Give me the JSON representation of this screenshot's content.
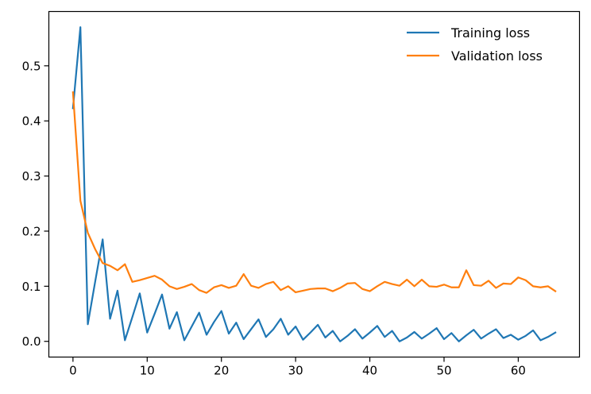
{
  "chart_data": {
    "type": "line",
    "title": "",
    "xlabel": "",
    "ylabel": "",
    "xlim": [
      -3.25,
      68.25
    ],
    "ylim": [
      -0.0285,
      0.5985
    ],
    "xticks": [
      0,
      10,
      20,
      30,
      40,
      50,
      60
    ],
    "yticks": [
      0.0,
      0.1,
      0.2,
      0.3,
      0.4,
      0.5
    ],
    "xtick_labels": [
      "0",
      "10",
      "20",
      "30",
      "40",
      "50",
      "60"
    ],
    "ytick_labels": [
      "0.0",
      "0.1",
      "0.2",
      "0.3",
      "0.4",
      "0.5"
    ],
    "grid": false,
    "legend_position": "top-right",
    "x": [
      0,
      1,
      2,
      3,
      4,
      5,
      6,
      7,
      8,
      9,
      10,
      11,
      12,
      13,
      14,
      15,
      16,
      17,
      18,
      19,
      20,
      21,
      22,
      23,
      24,
      25,
      26,
      27,
      28,
      29,
      30,
      31,
      32,
      33,
      34,
      35,
      36,
      37,
      38,
      39,
      40,
      41,
      42,
      43,
      44,
      45,
      46,
      47,
      48,
      49,
      50,
      51,
      52,
      53,
      54,
      55,
      56,
      57,
      58,
      59,
      60,
      61,
      62,
      63,
      64,
      65
    ],
    "series": [
      {
        "name": "Training loss",
        "color": "#1f77b4",
        "values": [
          0.423,
          0.57,
          0.031,
          0.109,
          0.185,
          0.041,
          0.092,
          0.002,
          0.044,
          0.087,
          0.016,
          0.05,
          0.085,
          0.023,
          0.053,
          0.002,
          0.027,
          0.052,
          0.012,
          0.035,
          0.055,
          0.014,
          0.034,
          0.004,
          0.022,
          0.04,
          0.008,
          0.022,
          0.041,
          0.012,
          0.027,
          0.003,
          0.016,
          0.03,
          0.007,
          0.019,
          0.0,
          0.01,
          0.022,
          0.005,
          0.016,
          0.028,
          0.008,
          0.019,
          0.0,
          0.007,
          0.017,
          0.005,
          0.014,
          0.024,
          0.004,
          0.015,
          0.0,
          0.011,
          0.021,
          0.005,
          0.014,
          0.022,
          0.006,
          0.012,
          0.003,
          0.01,
          0.02,
          0.002,
          0.008,
          0.016
        ]
      },
      {
        "name": "Validation loss",
        "color": "#ff7f0e",
        "values": [
          0.452,
          0.255,
          0.197,
          0.167,
          0.142,
          0.137,
          0.129,
          0.14,
          0.108,
          0.111,
          0.115,
          0.119,
          0.112,
          0.1,
          0.095,
          0.099,
          0.104,
          0.093,
          0.088,
          0.098,
          0.102,
          0.097,
          0.101,
          0.122,
          0.101,
          0.097,
          0.104,
          0.108,
          0.093,
          0.1,
          0.089,
          0.092,
          0.095,
          0.096,
          0.096,
          0.091,
          0.097,
          0.105,
          0.106,
          0.095,
          0.091,
          0.1,
          0.108,
          0.104,
          0.101,
          0.112,
          0.1,
          0.112,
          0.1,
          0.099,
          0.103,
          0.098,
          0.098,
          0.129,
          0.102,
          0.101,
          0.11,
          0.097,
          0.105,
          0.104,
          0.116,
          0.111,
          0.1,
          0.098,
          0.1,
          0.091
        ]
      }
    ]
  }
}
